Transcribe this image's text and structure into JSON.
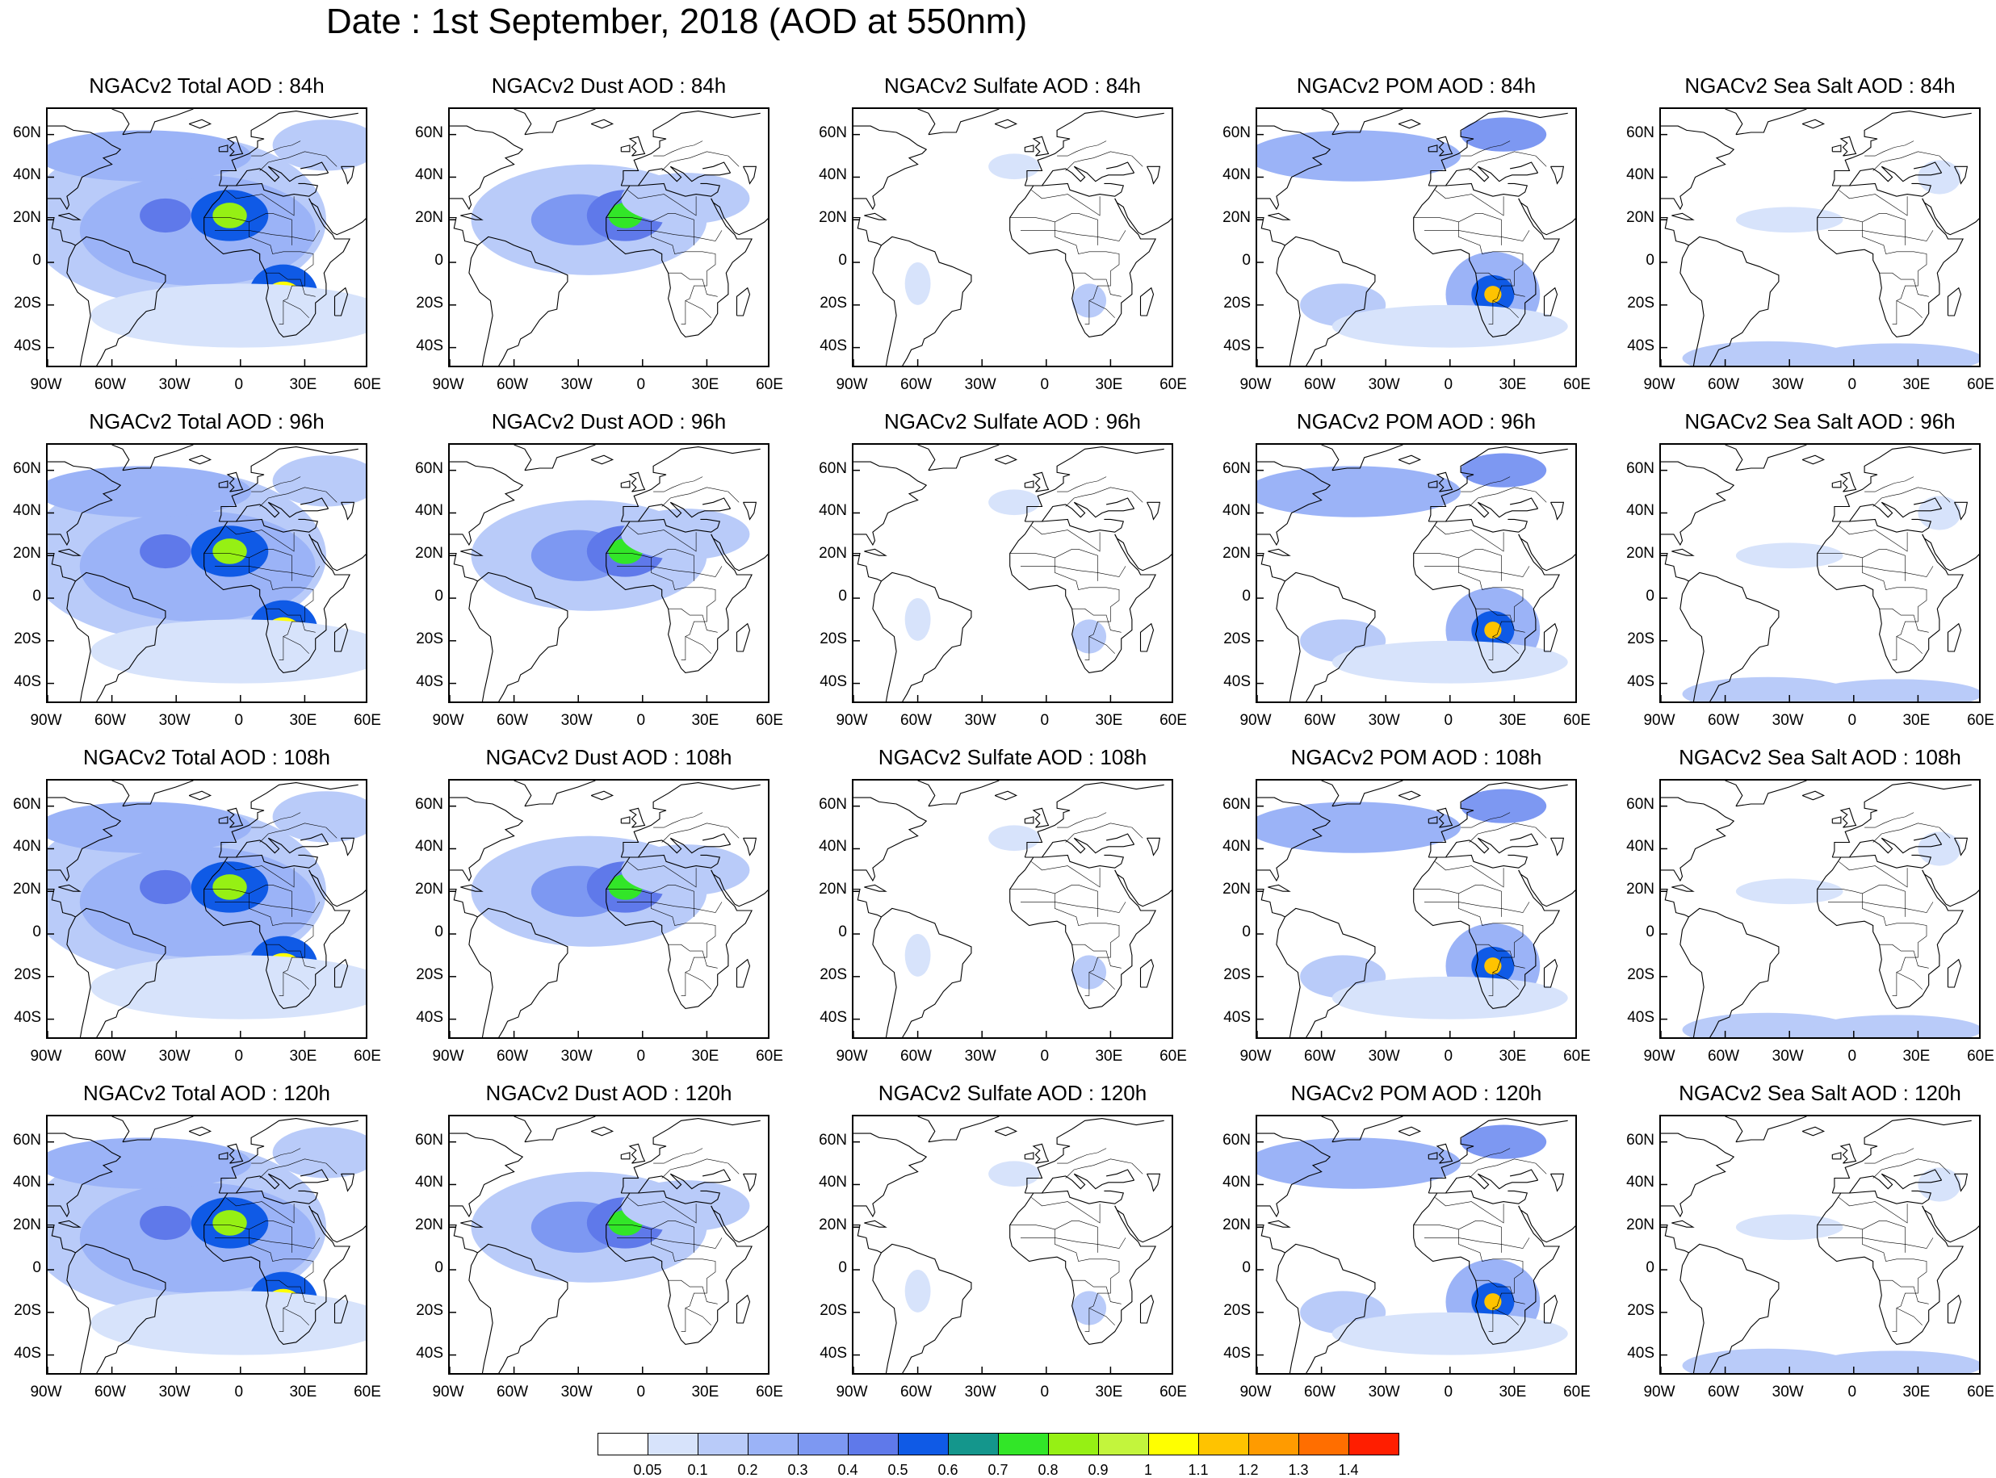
{
  "title": "Date : 1st September, 2018 (AOD at 550nm)",
  "panels": [
    {
      "title": "NGACv2 Total AOD : 84h",
      "species": "total"
    },
    {
      "title": "NGACv2 Dust AOD : 84h",
      "species": "dust"
    },
    {
      "title": "NGACv2 Sulfate AOD : 84h",
      "species": "sulfate"
    },
    {
      "title": "NGACv2 POM AOD : 84h",
      "species": "pom"
    },
    {
      "title": "NGACv2 Sea Salt AOD : 84h",
      "species": "seasalt"
    },
    {
      "title": "NGACv2 Total AOD : 96h",
      "species": "total"
    },
    {
      "title": "NGACv2 Dust AOD : 96h",
      "species": "dust"
    },
    {
      "title": "NGACv2 Sulfate AOD : 96h",
      "species": "sulfate"
    },
    {
      "title": "NGACv2 POM AOD : 96h",
      "species": "pom"
    },
    {
      "title": "NGACv2 Sea Salt AOD : 96h",
      "species": "seasalt"
    },
    {
      "title": "NGACv2 Total AOD : 108h",
      "species": "total"
    },
    {
      "title": "NGACv2 Dust AOD : 108h",
      "species": "dust"
    },
    {
      "title": "NGACv2 Sulfate AOD : 108h",
      "species": "sulfate"
    },
    {
      "title": "NGACv2 POM AOD : 108h",
      "species": "pom"
    },
    {
      "title": "NGACv2 Sea Salt AOD : 108h",
      "species": "seasalt"
    },
    {
      "title": "NGACv2 Total AOD : 120h",
      "species": "total"
    },
    {
      "title": "NGACv2 Dust AOD : 120h",
      "species": "dust"
    },
    {
      "title": "NGACv2 Sulfate AOD : 120h",
      "species": "sulfate"
    },
    {
      "title": "NGACv2 POM AOD : 120h",
      "species": "pom"
    },
    {
      "title": "NGACv2 Sea Salt  AOD : 120h",
      "species": "seasalt"
    }
  ],
  "lat_labels": [
    "60N",
    "40N",
    "20N",
    "0",
    "20S",
    "40S"
  ],
  "lon_labels": [
    "90W",
    "60W",
    "30W",
    "0",
    "30E",
    "60E"
  ],
  "colorbar": {
    "labels": [
      "0.05",
      "0.1",
      "0.2",
      "0.3",
      "0.4",
      "0.5",
      "0.6",
      "0.7",
      "0.8",
      "0.9",
      "1",
      "1.1",
      "1.2",
      "1.3",
      "1.4"
    ],
    "colors": [
      "#ffffff",
      "#d7e3fb",
      "#b9cbf9",
      "#9bb3f7",
      "#7d98f2",
      "#5f79ea",
      "#0f5ae6",
      "#14968c",
      "#32e628",
      "#96f014",
      "#c3f53c",
      "#ffff00",
      "#ffc300",
      "#ff9b00",
      "#ff6e00",
      "#ff1e00"
    ]
  }
}
